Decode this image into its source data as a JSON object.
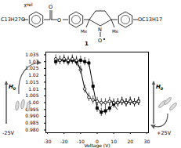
{
  "chart_data": {
    "type": "line",
    "x_label": "Voltage (V)",
    "y_label": "χrel",
    "xlim": [
      -31,
      31
    ],
    "xticks": [
      -30,
      -20,
      -10,
      0,
      10,
      20,
      30
    ],
    "ylim": [
      0.978,
      1.037
    ],
    "yticks": [
      {
        "value": 0.98,
        "label": "0.980"
      },
      0.985,
      {
        "value": 0.99,
        "label": "0.990"
      },
      0.995,
      {
        "value": 1,
        "label": "1.00"
      },
      1.005,
      1.01,
      1.015,
      1.02,
      1.025,
      1.03,
      1.035
    ],
    "series": [
      {
        "color": "#000000",
        "marker": "square",
        "x": [
          -25,
          -22.5,
          -20,
          -17.5,
          -15,
          -12.5,
          -10,
          -7.5,
          -5,
          -2.5,
          0,
          2.5,
          5,
          7.5,
          10,
          12.5,
          15,
          17.5,
          20,
          22.5,
          25
        ],
        "values": [
          1.03,
          1.031,
          1.031,
          1.03,
          1.031,
          1.03,
          1.031,
          1.03,
          1.029,
          1.012,
          0.996,
          0.993,
          0.994,
          0.996,
          0.999,
          1.0,
          1.001,
          1.0,
          1.001,
          1.0,
          1.001
        ],
        "errors": [
          0.003,
          0.003,
          0.003,
          0.003,
          0.003,
          0.003,
          0.003,
          0.003,
          0.003,
          0.003,
          0.003,
          0.003,
          0.003,
          0.003,
          0.003,
          0.003,
          0.003,
          0.003,
          0.003,
          0.003,
          0.003
        ]
      },
      {
        "color": "#000000",
        "marker": "circle",
        "x": [
          25,
          22.5,
          20,
          17.5,
          15,
          12.5,
          10,
          7.5,
          5,
          2.5,
          0,
          -2.5,
          -5,
          -7.5,
          -10,
          -12.5,
          -15,
          -17.5,
          -20,
          -22.5,
          -25
        ],
        "values": [
          1.001,
          1.0,
          1.001,
          1.0,
          1.001,
          1.0,
          1.0,
          1.001,
          1.0,
          1.0,
          1.001,
          1.002,
          1.004,
          1.01,
          1.024,
          1.031,
          1.032,
          1.031,
          1.032,
          1.031,
          1.032
        ],
        "errors": [
          0.003,
          0.003,
          0.003,
          0.003,
          0.003,
          0.003,
          0.003,
          0.003,
          0.003,
          0.003,
          0.003,
          0.003,
          0.003,
          0.003,
          0.003,
          0.003,
          0.003,
          0.003,
          0.003,
          0.003,
          0.003
        ]
      }
    ],
    "annotations": {
      "left_field": "H0",
      "left_voltage": "-25V",
      "right_field": "H0",
      "right_voltage": "+25V"
    },
    "molecule": {
      "label": "1",
      "left_chain": "C13H27O",
      "carbonyl_o": "O",
      "ester_o": "O",
      "methyl_1": "Me",
      "methyl_2": "Me",
      "nitrogen": "N",
      "oxyl": "O",
      "right_chain": "OC13H17"
    }
  }
}
